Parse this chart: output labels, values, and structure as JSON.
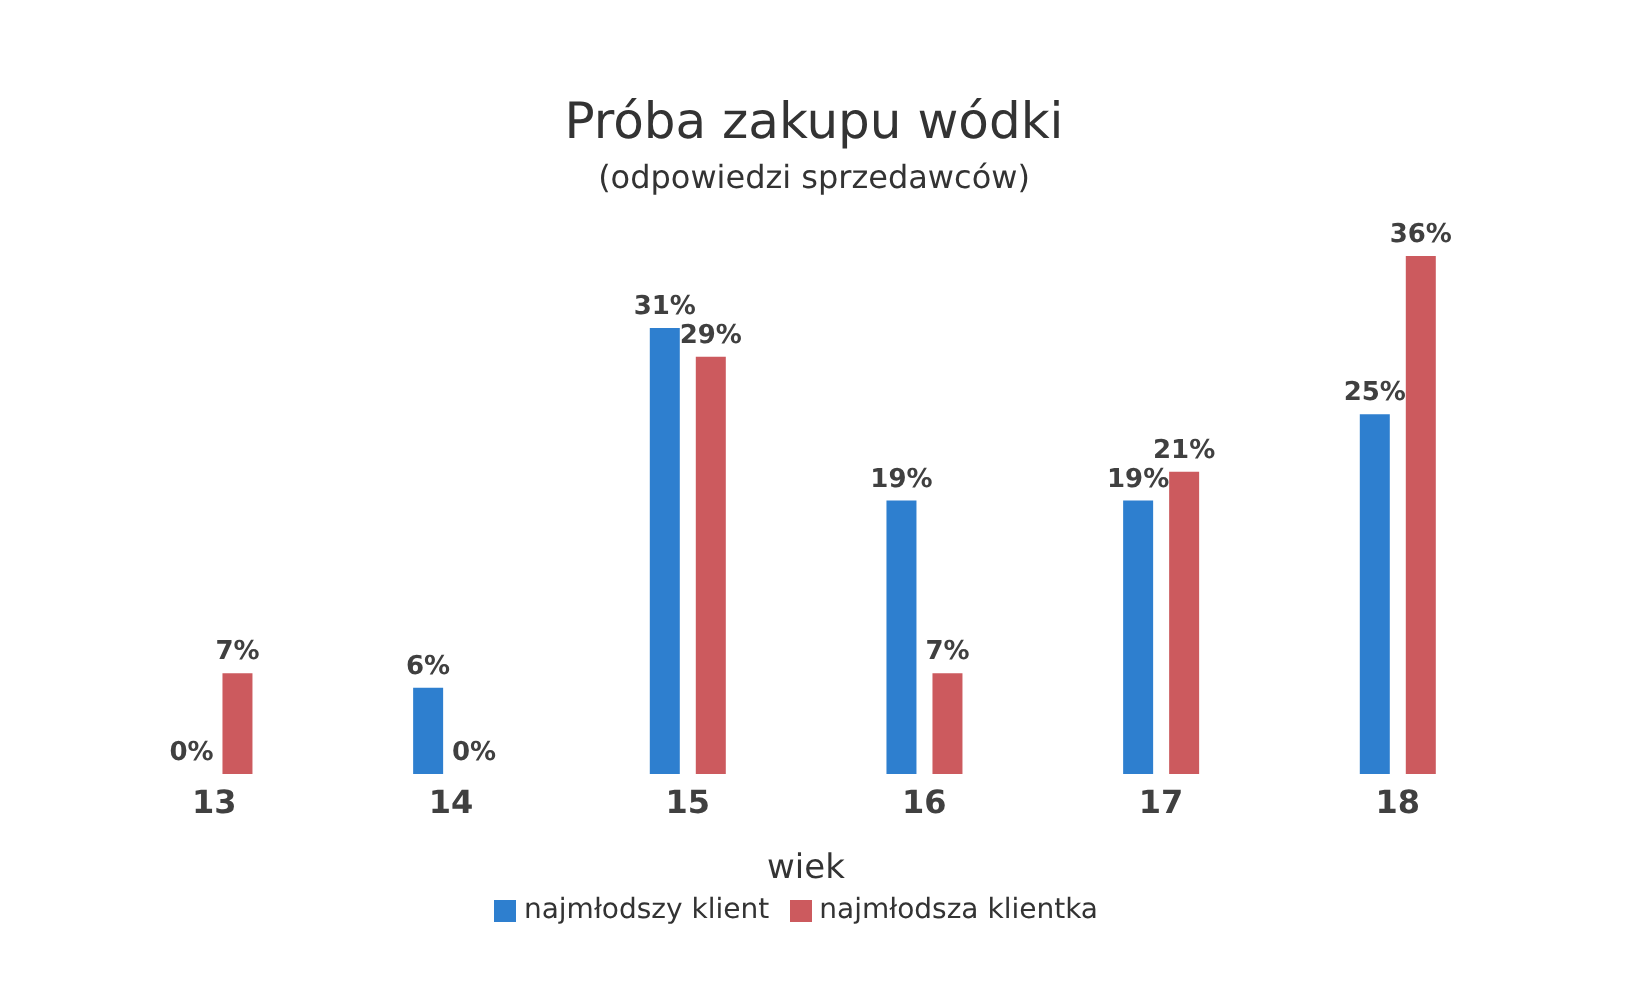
{
  "chart_data": {
    "type": "bar",
    "title": "Próba zakupu wódki",
    "subtitle": "(odpowiedzi sprzedawców)",
    "xlabel": "wiek",
    "categories": [
      "13",
      "14",
      "15",
      "16",
      "17",
      "18"
    ],
    "series": [
      {
        "name": "najmłodszy klient",
        "color": "#2e7fcf",
        "values": [
          0,
          6,
          31,
          19,
          19,
          25
        ],
        "value_labels": [
          "0%",
          "6%",
          "31%",
          "19%",
          "19%",
          "25%"
        ]
      },
      {
        "name": "najmłodsza klientka",
        "color": "#cc5a5e",
        "values": [
          7,
          0,
          29,
          7,
          21,
          36
        ],
        "value_labels": [
          "7%",
          "0%",
          "29%",
          "7%",
          "21%",
          "36%"
        ]
      }
    ],
    "legend": "bottom"
  }
}
